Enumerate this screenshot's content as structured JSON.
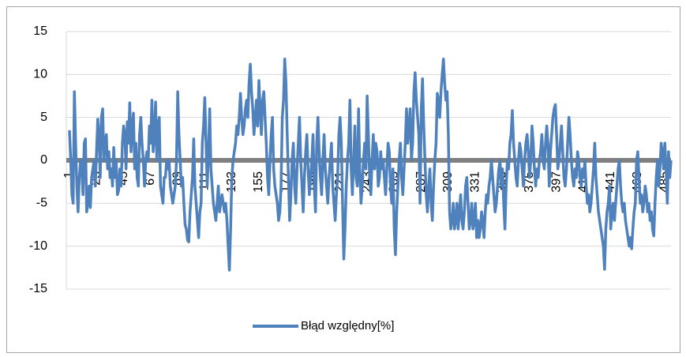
{
  "chart_data": {
    "type": "line",
    "x": [
      1,
      2,
      3,
      4,
      5,
      6,
      7,
      8,
      9,
      10,
      11,
      12,
      13,
      14,
      15,
      16,
      17,
      18,
      19,
      20,
      21,
      22,
      23,
      24,
      25,
      26,
      27,
      28,
      29,
      30,
      31,
      32,
      33,
      34,
      35,
      36,
      37,
      38,
      39,
      40,
      41,
      42,
      43,
      44,
      45,
      46,
      47,
      48,
      49,
      50,
      51,
      52,
      53,
      54,
      55,
      56,
      57,
      58,
      59,
      60,
      61,
      62,
      63,
      64,
      65,
      66,
      67,
      68,
      69,
      70,
      71,
      72,
      73,
      74,
      75,
      76,
      77,
      78,
      79,
      80,
      81,
      82,
      83,
      84,
      85,
      86,
      87,
      88,
      89,
      90,
      91,
      92,
      93,
      94,
      95,
      96,
      97,
      98,
      99,
      100,
      101,
      102,
      103,
      104,
      105,
      106,
      107,
      108,
      109,
      110,
      111,
      112,
      113,
      114,
      115,
      116,
      117,
      118,
      119,
      120,
      121,
      122,
      123,
      124,
      125,
      126,
      127,
      128,
      129,
      130,
      131,
      132,
      133,
      134,
      135,
      136,
      137,
      138,
      139,
      140,
      141,
      142,
      143,
      144,
      145,
      146,
      147,
      148,
      149,
      150,
      151,
      152,
      153,
      154,
      155,
      156,
      157,
      158,
      159,
      160,
      161,
      162,
      163,
      164,
      165,
      166,
      167,
      168,
      169,
      170,
      171,
      172,
      173,
      174,
      175,
      176,
      177,
      178,
      179,
      180,
      181,
      182,
      183,
      184,
      185,
      186,
      187,
      188,
      189,
      190,
      191,
      192,
      193,
      194,
      195,
      196,
      197,
      198,
      199,
      200,
      201,
      202,
      203,
      204,
      205,
      206,
      207,
      208,
      209,
      210,
      211,
      212,
      213,
      214,
      215,
      216,
      217,
      218,
      219,
      220,
      221,
      222,
      223,
      224,
      225,
      226,
      227,
      228,
      229,
      230,
      231,
      232,
      233,
      234,
      235,
      236,
      237,
      238,
      239,
      240,
      241,
      242,
      243,
      244,
      245,
      246,
      247,
      248,
      249,
      250,
      251,
      252,
      253,
      254,
      255,
      256,
      257,
      258,
      259,
      260,
      261,
      262,
      263,
      264,
      265,
      266,
      267,
      268,
      269,
      270,
      271,
      272,
      273,
      274,
      275,
      276,
      277,
      278,
      279,
      280,
      281,
      282,
      283,
      284,
      285,
      286,
      287,
      288,
      289,
      290,
      291,
      292,
      293,
      294,
      295,
      296,
      297,
      298,
      299,
      300,
      301,
      302,
      303,
      304,
      305,
      306,
      307,
      308,
      309,
      310,
      311,
      312,
      313,
      314,
      315,
      316,
      317,
      318,
      319,
      320,
      321,
      322,
      323,
      324,
      325,
      326,
      327,
      328,
      329,
      330,
      331,
      332,
      333,
      334,
      335,
      336,
      337,
      338,
      339,
      340,
      341,
      342,
      343,
      344,
      345,
      346,
      347,
      348,
      349,
      350,
      351,
      352,
      353,
      354,
      355,
      356,
      357,
      358,
      359,
      360,
      361,
      362,
      363,
      364,
      365,
      366,
      367,
      368,
      369,
      370,
      371,
      372,
      373,
      374,
      375,
      376,
      377,
      378,
      379,
      380,
      381,
      382,
      383,
      384,
      385,
      386,
      387,
      388,
      389,
      390,
      391,
      392,
      393,
      394,
      395,
      396,
      397,
      398,
      399,
      400,
      401,
      402,
      403,
      404,
      405,
      406,
      407,
      408,
      409,
      410,
      411,
      412,
      413,
      414,
      415,
      416,
      417,
      418,
      419,
      420,
      421,
      422,
      423,
      424,
      425,
      426,
      427,
      428,
      429,
      430,
      431,
      432,
      433,
      434,
      435,
      436,
      437,
      438,
      439,
      440,
      441,
      442,
      443,
      444,
      445,
      446,
      447,
      448,
      449,
      450,
      451,
      452,
      453,
      454,
      455,
      456,
      457,
      458,
      459,
      460,
      461,
      462,
      463,
      464,
      465,
      466,
      467,
      468,
      469,
      470,
      471,
      472,
      473,
      474,
      475,
      476,
      477,
      478,
      479,
      480,
      481,
      482,
      483,
      484,
      485,
      486,
      487,
      488,
      489,
      490
    ],
    "series": [
      {
        "name": "Błąd względny[%]",
        "color": "#4f81bd",
        "values": [
          3.5,
          0,
          -4,
          -5,
          8,
          2,
          -3,
          -6,
          -2,
          0,
          -1,
          -4,
          2,
          2.5,
          -6,
          -5,
          -3,
          -5.5,
          -2,
          -1,
          0,
          -3,
          1,
          4.8,
          3,
          -2,
          5,
          6,
          0,
          2,
          3,
          -1,
          1,
          -2,
          -1,
          -3,
          1.5,
          -2,
          0,
          -4,
          -3.5,
          -1,
          -3,
          2,
          4,
          3,
          -1,
          4.5,
          2,
          6.7,
          1,
          4,
          5.5,
          -1,
          2,
          -2,
          -3,
          3,
          5,
          2,
          0,
          -3,
          0,
          1,
          0,
          4,
          2,
          7,
          1,
          3,
          6.8,
          0,
          4,
          5,
          -3,
          -4,
          -5,
          -2,
          -2,
          0,
          -1,
          0,
          -3,
          -4,
          -5,
          -4,
          -3,
          0,
          8,
          3,
          0,
          -3,
          -2,
          -5,
          -7.5,
          -8,
          -9.3,
          -9.5,
          -6,
          -4,
          -2,
          2.5,
          -3,
          -5,
          -7,
          -9,
          -6,
          -5,
          2,
          4,
          7.3,
          2,
          -3,
          1,
          6,
          -1,
          -3,
          -5,
          -6,
          -7,
          -5,
          -3,
          -6,
          -5,
          -4,
          -5,
          -6,
          -5,
          -7,
          -10,
          -12.8,
          -8,
          -2,
          0,
          1,
          2,
          4,
          3,
          5,
          7.8,
          5,
          3,
          4,
          6,
          7,
          5,
          9,
          11.2,
          8,
          6,
          3,
          5,
          7,
          4,
          9.3,
          6,
          3,
          7,
          8,
          5,
          2,
          -2,
          -4,
          0,
          3,
          5,
          -1,
          -3,
          -4,
          -5,
          -7,
          -6,
          -3,
          5,
          7,
          11.8,
          9,
          3,
          -2,
          -7,
          -4,
          0,
          2,
          -3,
          -5,
          -1,
          2,
          5,
          0,
          -3,
          -6,
          -2,
          1,
          3,
          -1,
          -4,
          -2,
          0,
          3,
          -3,
          -6,
          2,
          5,
          1,
          -2,
          -4,
          0,
          3,
          -1,
          -3,
          -5,
          -2,
          0,
          2,
          -3,
          -5,
          -7,
          -4,
          -2,
          3,
          5,
          2,
          -5,
          -11.5,
          -8,
          -3,
          0,
          2,
          7,
          -1,
          -4,
          0,
          4,
          -2,
          -3,
          6,
          -1,
          -5,
          -3,
          0,
          2,
          -1,
          7.5,
          3,
          -2,
          -4,
          0,
          3,
          -1,
          2,
          1,
          -3,
          -2,
          1,
          -1,
          0,
          -2,
          -4,
          -1,
          2,
          1,
          -3,
          -5,
          -1,
          -8,
          -11,
          -6,
          -3,
          0,
          2,
          -2,
          -4,
          -1,
          2,
          6,
          2,
          4,
          6,
          0,
          2,
          8,
          10.2,
          7,
          5,
          3,
          -5,
          6,
          9.5,
          4,
          0,
          -4,
          -6,
          -3,
          -1,
          -5,
          -7,
          -3,
          0,
          2,
          7.8,
          7,
          5,
          8,
          10,
          11.8,
          9,
          7,
          8,
          3,
          -6,
          -8,
          -7,
          -5,
          -8,
          -7,
          -5,
          -8,
          -6,
          -4,
          -7,
          -8,
          -6,
          -3,
          -2,
          -5,
          -8,
          -7,
          -5,
          -8,
          -7,
          -5,
          -9,
          -7,
          -9,
          -8,
          -6,
          -7,
          -9,
          -6,
          -4,
          -5,
          -3,
          -2,
          0,
          -2,
          -4,
          -6,
          -5,
          -3,
          -1,
          0,
          -3,
          -1,
          -5,
          -8,
          -3,
          0,
          -1,
          2,
          3,
          5.8,
          2,
          0,
          -2,
          -3,
          0,
          2,
          1,
          -1,
          -3,
          0,
          2,
          3,
          1,
          -2,
          0,
          4,
          2,
          -1,
          -3,
          -1,
          -2,
          0,
          1,
          3,
          0,
          -1,
          2,
          4,
          2,
          -3,
          1,
          3,
          5,
          6,
          6.5,
          3,
          -1,
          0,
          2,
          4,
          1,
          -2,
          -3,
          -1,
          2,
          5,
          3,
          0,
          -2,
          -3,
          -1,
          -2,
          1,
          0,
          -2,
          -3,
          -1,
          -2,
          0,
          -3,
          -5,
          -4,
          -6,
          -5,
          -3,
          -1,
          2,
          -2,
          -4,
          -6,
          -7,
          -8,
          -9,
          -10,
          -12.7,
          -8,
          -6,
          -5,
          -3,
          -8,
          -6,
          -5,
          -7,
          -5,
          -3,
          -1,
          0,
          -3,
          -5,
          -6,
          -5,
          -7,
          -8,
          -9,
          -10,
          -9,
          -10.3,
          -8,
          -6,
          -5,
          0,
          1,
          -2,
          -5,
          -4,
          -6,
          -5,
          -3,
          -4,
          -6,
          -5,
          -7,
          -6,
          -8,
          -8.8,
          -5,
          -2,
          0,
          -3,
          -1,
          2,
          1,
          -1,
          2,
          -1,
          -5,
          1,
          -2,
          0
        ]
      }
    ],
    "xlim": [
      1,
      490
    ],
    "xticks": [
      1,
      23,
      45,
      67,
      89,
      111,
      133,
      155,
      177,
      199,
      221,
      243,
      265,
      287,
      309,
      331,
      353,
      375,
      397,
      419,
      441,
      463,
      485
    ],
    "ylim": [
      -15,
      15
    ],
    "yticks": [
      -15,
      -10,
      -5,
      0,
      5,
      10,
      15
    ],
    "grid": true,
    "legend": "bottom"
  }
}
